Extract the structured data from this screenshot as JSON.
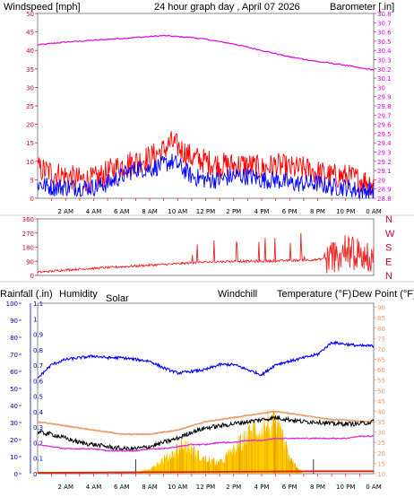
{
  "header": {
    "wind_title": "Windspeed [mph]",
    "center_title": "24 hour graph day , April 07 2026",
    "baro_title": "Barometer [.in]"
  },
  "lower_header": {
    "rain": "Rainfall (.in)",
    "humidity": "Humidity",
    "solar": "Solar",
    "windchill": "Windchill",
    "temperature": "Temperature (°F)",
    "dewpoint": "Dew Point (°F)"
  },
  "colors": {
    "wind_title": "#cc0033",
    "center_title": "#dddd00",
    "baro": "#dd00dd",
    "gust": "#ff0000",
    "avg": "#0000ff",
    "dir": "#ee2222",
    "rain_axis": "#0000aa",
    "temp": "#ee9966",
    "windchill": "#000000",
    "dew": "#dd22dd",
    "solar": "#ffcc00",
    "solar_edge": "#e8a000",
    "grid": "#ff0000",
    "frame": "#555555",
    "sep": "#cccccc"
  },
  "chart_data": [
    {
      "type": "line",
      "name": "wind-and-barometer",
      "xticks": [
        "2 AM",
        "4 AM",
        "6 AM",
        "8 AM",
        "10 AM",
        "12 PM",
        "2 PM",
        "4 PM",
        "6 PM",
        "8 PM",
        "10 PM",
        "0 AM"
      ],
      "x_range_hours": [
        0,
        24
      ],
      "y_left_ticks": [
        "0",
        "5",
        "10",
        "15",
        "20",
        "25",
        "30",
        "35",
        "40",
        "45",
        "50"
      ],
      "y_left_range": [
        0,
        50
      ],
      "y_right_ticks": [
        "28.8",
        "28.9",
        "29",
        "29.1",
        "29.2",
        "29.3",
        "29.4",
        "29.5",
        "29.6",
        "29.7",
        "29.8",
        "29.9",
        "30",
        "30.1",
        "30.2",
        "30.3",
        "30.4",
        "30.5",
        "30.6",
        "30.7",
        "30.8"
      ],
      "y_right_range": [
        28.8,
        30.8
      ],
      "barometer": {
        "x": [
          0,
          2,
          4,
          6,
          8,
          9,
          10,
          11,
          12,
          14,
          16,
          18,
          20,
          22,
          23,
          24
        ],
        "y": [
          30.46,
          30.49,
          30.51,
          30.53,
          30.55,
          30.56,
          30.55,
          30.54,
          30.52,
          30.47,
          30.4,
          30.33,
          30.28,
          30.24,
          30.21,
          30.19
        ]
      },
      "gust": {
        "x": [
          0,
          1,
          2,
          3,
          4,
          5,
          6,
          7,
          8,
          9,
          9.5,
          10,
          11,
          12,
          13,
          14,
          15,
          16,
          17,
          18,
          19,
          20,
          21,
          22,
          23,
          24
        ],
        "y": [
          8,
          7,
          6,
          5,
          5,
          7,
          9,
          10,
          11,
          13,
          15,
          14,
          11,
          10,
          9,
          9,
          9,
          8,
          9,
          8,
          8,
          7,
          6,
          6,
          5,
          4
        ]
      },
      "average": {
        "x": [
          0,
          1,
          2,
          3,
          4,
          5,
          6,
          7,
          8,
          9,
          9.5,
          10,
          11,
          12,
          13,
          14,
          15,
          16,
          17,
          18,
          19,
          20,
          21,
          22,
          23,
          24
        ],
        "y": [
          4,
          3,
          3,
          3,
          3,
          4,
          6,
          8,
          8,
          9,
          10,
          9,
          6,
          5,
          5,
          6,
          6,
          5,
          5,
          4,
          4,
          4,
          3,
          3,
          2,
          2
        ]
      }
    },
    {
      "type": "line",
      "name": "wind-direction",
      "y_ticks": [
        "0",
        "90",
        "180",
        "270",
        "360"
      ],
      "y_range": [
        0,
        360
      ],
      "dir_labels": [
        "N",
        "W",
        "S",
        "E",
        "N"
      ],
      "direction": {
        "x": [
          0,
          2,
          4,
          6,
          8,
          10,
          12,
          14,
          16,
          18,
          20,
          21,
          22,
          23,
          24
        ],
        "y": [
          20,
          35,
          45,
          55,
          65,
          75,
          85,
          90,
          90,
          95,
          100,
          120,
          150,
          130,
          110
        ]
      }
    },
    {
      "type": "line",
      "name": "temperature-humidity-rain",
      "y_left_ticks": [
        "0",
        "10",
        "20",
        "30",
        "40",
        "50",
        "60",
        "70",
        "80",
        "90",
        "100"
      ],
      "y_left_range": [
        0,
        100
      ],
      "rain_ticks": [
        "0",
        "0.1",
        "0.2",
        "0.3",
        "0.4",
        "0.5",
        "0.6",
        "0.7",
        "0.8",
        "0.9",
        "1",
        "1.1"
      ],
      "rain_range": [
        0,
        1.1
      ],
      "y_right_ticks": [
        "10",
        "15",
        "20",
        "25",
        "30",
        "35",
        "40",
        "45",
        "50",
        "55",
        "60",
        "65",
        "70",
        "75",
        "80",
        "85",
        "90"
      ],
      "y_right_range": [
        10,
        92
      ],
      "humidity": {
        "x": [
          0,
          1,
          2,
          3,
          4,
          5,
          6,
          7,
          8,
          9,
          10,
          11,
          12,
          13,
          14,
          15,
          16,
          17,
          18,
          19,
          20,
          21,
          22,
          23,
          24
        ],
        "y": [
          56,
          64,
          67,
          68,
          69,
          68,
          68,
          67,
          66,
          62,
          59,
          60,
          61,
          64,
          64,
          61,
          58,
          64,
          66,
          68,
          70,
          77,
          76,
          75,
          75
        ]
      },
      "temperature": {
        "x": [
          0,
          1,
          2,
          3,
          4,
          5,
          6,
          7,
          8,
          9,
          10,
          11,
          12,
          13,
          14,
          15,
          16,
          17,
          18,
          19,
          20,
          21,
          22,
          23,
          24
        ],
        "y": [
          35,
          34,
          33,
          32,
          31,
          30,
          29,
          29,
          29,
          30,
          31,
          33,
          35,
          36,
          37,
          38,
          39,
          40,
          39,
          38,
          37,
          36,
          36,
          35,
          35
        ]
      },
      "windchill": {
        "x": [
          0,
          1,
          2,
          3,
          4,
          5,
          6,
          7,
          8,
          9,
          10,
          11,
          12,
          13,
          14,
          15,
          16,
          17,
          18,
          19,
          20,
          21,
          22,
          23,
          24
        ],
        "y": [
          30,
          29,
          27,
          25,
          24,
          23,
          22,
          22,
          23,
          25,
          27,
          30,
          32,
          33,
          34,
          35,
          36,
          37,
          36,
          35,
          35,
          34,
          34,
          34,
          35
        ]
      },
      "dewpoint": {
        "x": [
          0,
          1,
          2,
          3,
          4,
          5,
          6,
          7,
          8,
          9,
          10,
          11,
          12,
          13,
          14,
          15,
          16,
          17,
          18,
          19,
          20,
          21,
          22,
          23,
          24
        ],
        "y": [
          24,
          23,
          22,
          22,
          22,
          21,
          21,
          21,
          22,
          22,
          23,
          24,
          24,
          25,
          25,
          26,
          26,
          27,
          27,
          27,
          27,
          27,
          27,
          28,
          28
        ]
      },
      "solar": {
        "x": [
          7,
          8,
          9,
          9.5,
          10,
          10.5,
          11,
          11.5,
          12,
          13,
          14,
          14.5,
          15,
          15.5,
          16,
          16.5,
          17,
          17.5,
          18,
          19
        ],
        "y": [
          0,
          3,
          8,
          11,
          14,
          17,
          14,
          10,
          8,
          6,
          14,
          17,
          22,
          25,
          26,
          28,
          26,
          20,
          8,
          0
        ]
      },
      "rain": {
        "x": [
          0,
          20,
          24
        ],
        "y": [
          0,
          0.01,
          0.01
        ]
      }
    }
  ]
}
